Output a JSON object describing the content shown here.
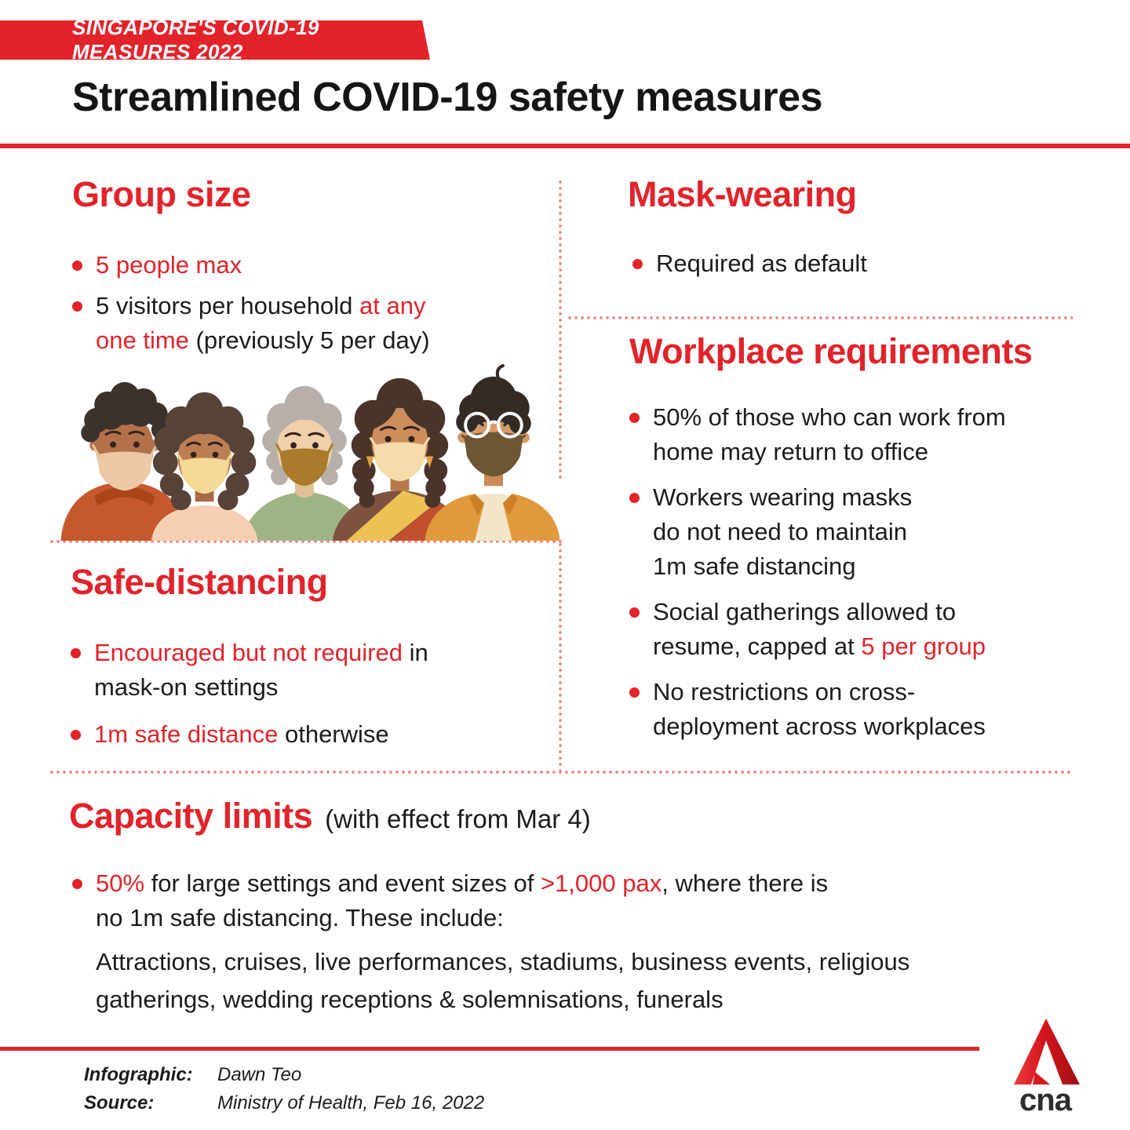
{
  "colors": {
    "accent_red": "#e2232a",
    "ink": "#1e1b1a",
    "dotted_divider": "#ee8377"
  },
  "banner": {
    "label": "SINGAPORE'S COVID-19 MEASURES 2022"
  },
  "title": "Streamlined COVID-19 safety measures",
  "sections": {
    "group_size": {
      "heading": "Group size",
      "bullets": [
        {
          "segments": [
            {
              "text": "5 people max",
              "red": true
            }
          ]
        },
        {
          "segments": [
            {
              "text": "5 visitors per household ",
              "red": false
            },
            {
              "text": "at any\none time",
              "red": true
            },
            {
              "text": " (previously 5 per day)",
              "red": false
            }
          ]
        }
      ]
    },
    "mask_wearing": {
      "heading": "Mask-wearing",
      "bullets": [
        {
          "segments": [
            {
              "text": "Required as default",
              "red": false
            }
          ]
        }
      ]
    },
    "workplace": {
      "heading": "Workplace requirements",
      "bullets": [
        {
          "segments": [
            {
              "text": "50% of those who can work from\nhome may return to office",
              "red": false
            }
          ]
        },
        {
          "segments": [
            {
              "text": "Workers wearing masks\ndo not need to maintain\n1m safe distancing",
              "red": false
            }
          ]
        },
        {
          "segments": [
            {
              "text": "Social gatherings allowed to\nresume, capped at ",
              "red": false
            },
            {
              "text": "5 per group",
              "red": true
            }
          ]
        },
        {
          "segments": [
            {
              "text": "No restrictions on cross-\ndeployment across workplaces",
              "red": false
            }
          ]
        }
      ]
    },
    "safe_distancing": {
      "heading": "Safe-distancing",
      "bullets": [
        {
          "segments": [
            {
              "text": "Encouraged but not required",
              "red": true
            },
            {
              "text": " in\nmask-on settings",
              "red": false
            }
          ]
        },
        {
          "segments": [
            {
              "text": "1m safe distance",
              "red": true
            },
            {
              "text": " otherwise",
              "red": false
            }
          ]
        }
      ]
    },
    "capacity": {
      "heading": "Capacity limits",
      "heading_note": "(with effect from Mar 4)",
      "bullets": [
        {
          "segments": [
            {
              "text": "50%",
              "red": true
            },
            {
              "text": " for large settings and event sizes of ",
              "red": false
            },
            {
              "text": ">1,000 pax",
              "red": true
            },
            {
              "text": ", where there is\nno 1m safe distancing. These include:",
              "red": false
            }
          ]
        }
      ],
      "detail": "Attractions, cruises, live performances, stadiums, business events, religious\ngatherings, wedding receptions & solemnisations, funerals"
    }
  },
  "footer": {
    "credit_label": "Infographic:",
    "credit_value": "Dawn Teo",
    "source_label": "Source:",
    "source_value": "Ministry of Health, Feb 16, 2022",
    "logo_text": "cna"
  }
}
